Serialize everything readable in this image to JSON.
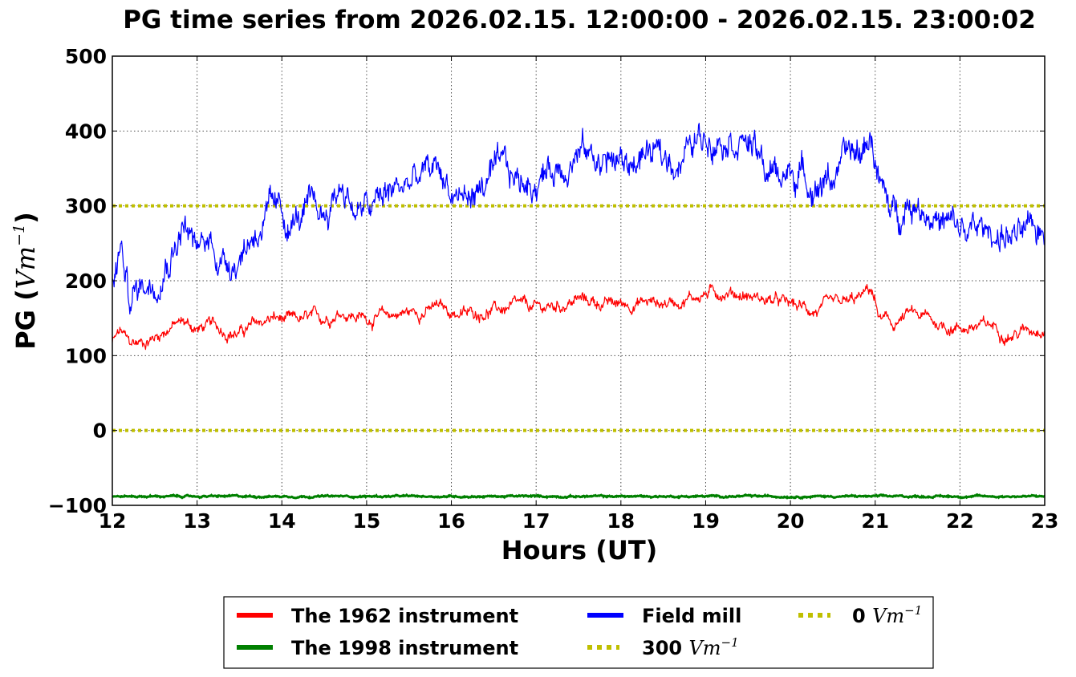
{
  "chart_data": {
    "type": "line",
    "title": "PG time series from 2026.02.15. 12:00:00 - 2026.02.15. 23:00:02",
    "xlabel": "Hours (UT)",
    "ylabel_prefix": "PG (",
    "ylabel_unit": "Vm",
    "ylabel_exp": "−1",
    "ylabel_suffix": ")",
    "xlim": [
      12,
      23
    ],
    "ylim": [
      -100,
      500
    ],
    "xticks": [
      12,
      13,
      14,
      15,
      16,
      17,
      18,
      19,
      20,
      21,
      22,
      23
    ],
    "yticks": [
      -100,
      0,
      100,
      200,
      300,
      400,
      500
    ],
    "ytick_labels": [
      "−100",
      "0",
      "100",
      "200",
      "300",
      "400",
      "500"
    ],
    "grid": true,
    "legend_placement": "below plot, 3 columns",
    "series": [
      {
        "name": "The 1962 instrument",
        "color": "#ff0000",
        "style": "solid",
        "x": [
          12.0,
          12.1,
          12.2,
          12.35,
          12.5,
          12.7,
          12.85,
          13.0,
          13.15,
          13.3,
          13.5,
          13.7,
          13.9,
          14.1,
          14.3,
          14.5,
          14.7,
          14.9,
          15.1,
          15.3,
          15.5,
          15.7,
          15.85,
          16.0,
          16.2,
          16.4,
          16.6,
          16.8,
          17.0,
          17.2,
          17.5,
          17.7,
          17.9,
          18.1,
          18.3,
          18.5,
          18.7,
          18.9,
          19.1,
          19.3,
          19.5,
          19.7,
          19.9,
          20.1,
          20.3,
          20.5,
          20.7,
          20.85,
          20.95,
          21.05,
          21.2,
          21.4,
          21.6,
          21.8,
          22.0,
          22.2,
          22.4,
          22.6,
          22.8,
          23.0
        ],
        "y": [
          118,
          132,
          115,
          118,
          125,
          140,
          145,
          135,
          140,
          135,
          130,
          142,
          150,
          145,
          148,
          150,
          160,
          152,
          150,
          155,
          158,
          160,
          165,
          158,
          155,
          160,
          162,
          165,
          162,
          165,
          175,
          172,
          168,
          170,
          172,
          170,
          175,
          180,
          185,
          185,
          180,
          175,
          170,
          165,
          160,
          165,
          170,
          178,
          190,
          150,
          140,
          155,
          150,
          140,
          138,
          138,
          140,
          128,
          135,
          140
        ]
      },
      {
        "name": "The 1998 instrument",
        "color": "#008000",
        "style": "solid",
        "x": [
          12,
          13,
          14,
          15,
          16,
          17,
          18,
          19,
          20,
          21,
          22,
          23
        ],
        "y": [
          -88,
          -88,
          -88,
          -88,
          -88,
          -88,
          -88,
          -88,
          -88,
          -88,
          -88,
          -88
        ]
      },
      {
        "name": "Field mill",
        "color": "#0000ff",
        "style": "solid",
        "x": [
          12.0,
          12.1,
          12.2,
          12.35,
          12.5,
          12.7,
          12.85,
          13.0,
          13.15,
          13.3,
          13.5,
          13.7,
          13.9,
          14.1,
          14.3,
          14.5,
          14.7,
          14.9,
          15.1,
          15.3,
          15.5,
          15.7,
          15.85,
          16.0,
          16.2,
          16.4,
          16.6,
          16.8,
          17.0,
          17.2,
          17.5,
          17.7,
          17.9,
          18.1,
          18.3,
          18.5,
          18.7,
          18.9,
          19.1,
          19.3,
          19.5,
          19.7,
          19.9,
          20.1,
          20.3,
          20.5,
          20.7,
          20.85,
          20.95,
          21.05,
          21.2,
          21.4,
          21.6,
          21.8,
          22.0,
          22.2,
          22.4,
          22.6,
          22.8,
          23.0
        ],
        "y": [
          185,
          245,
          175,
          195,
          205,
          245,
          280,
          235,
          255,
          225,
          235,
          270,
          290,
          275,
          290,
          285,
          330,
          290,
          300,
          320,
          330,
          340,
          350,
          320,
          310,
          330,
          345,
          330,
          335,
          350,
          375,
          365,
          360,
          355,
          370,
          360,
          365,
          385,
          400,
          400,
          390,
          345,
          340,
          345,
          330,
          340,
          365,
          370,
          400,
          330,
          285,
          310,
          300,
          275,
          265,
          265,
          265,
          260,
          255,
          270
        ]
      },
      {
        "name": "300 Vm−1",
        "label_value": "300",
        "label_unit": "Vm",
        "label_exp": "−1",
        "color": "#bfbf00",
        "style": "dotted",
        "x": [
          12,
          23
        ],
        "y": [
          300,
          300
        ]
      },
      {
        "name": "0 Vm−1",
        "label_value": "0",
        "label_unit": "Vm",
        "label_exp": "−1",
        "color": "#bfbf00",
        "style": "dotted",
        "x": [
          12,
          23
        ],
        "y": [
          0,
          0
        ]
      }
    ]
  }
}
